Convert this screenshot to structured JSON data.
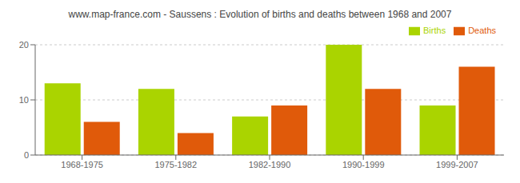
{
  "chart_data": {
    "type": "bar",
    "title": "www.map-france.com - Saussens : Evolution of births and deaths between 1968 and 2007",
    "categories": [
      "1968-1975",
      "1975-1982",
      "1982-1990",
      "1990-1999",
      "1999-2007"
    ],
    "series": [
      {
        "name": "Births",
        "color": "#aad400",
        "values": [
          13,
          12,
          7,
          20,
          9
        ]
      },
      {
        "name": "Deaths",
        "color": "#e05a0a",
        "values": [
          6,
          4,
          9,
          12,
          16
        ]
      }
    ],
    "ylim": [
      0,
      20
    ],
    "yticks": [
      0,
      10,
      20
    ],
    "grid": true,
    "legend": "upper right"
  }
}
